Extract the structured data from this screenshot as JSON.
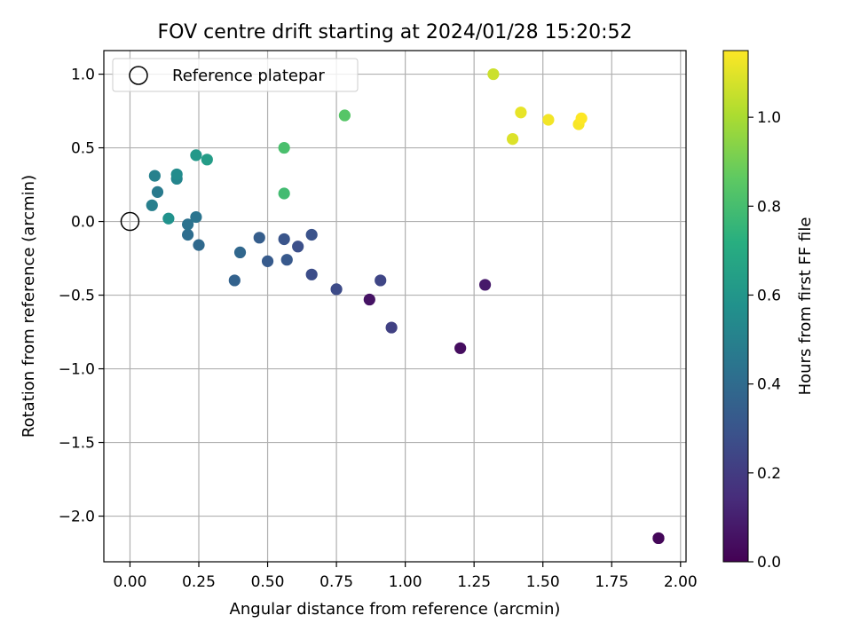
{
  "chart_data": {
    "type": "scatter",
    "title": "FOV centre drift starting at 2024/01/28 15:20:52",
    "xlabel": "Angular distance from reference (arcmin)",
    "ylabel": "Rotation from reference (arcmin)",
    "xlim": [
      -0.095,
      2.02
    ],
    "ylim": [
      -2.31,
      1.16
    ],
    "xticks": [
      0.0,
      0.25,
      0.5,
      0.75,
      1.0,
      1.25,
      1.5,
      1.75,
      2.0
    ],
    "xtick_labels": [
      "0.00",
      "0.25",
      "0.50",
      "0.75",
      "1.00",
      "1.25",
      "1.50",
      "1.75",
      "2.00"
    ],
    "yticks": [
      1.0,
      0.5,
      0.0,
      -0.5,
      -1.0,
      -1.5,
      -2.0
    ],
    "ytick_labels": [
      "1.0",
      "0.5",
      "0.0",
      "−0.5",
      "−1.0",
      "−1.5",
      "−2.0"
    ],
    "grid": true,
    "legend": {
      "placement": "top-left",
      "label": "Reference platepar"
    },
    "reference_point": {
      "x": 0.0,
      "y": 0.0
    },
    "colorbar": {
      "label": "Hours from first FF file",
      "range": [
        0.0,
        1.15
      ],
      "ticks": [
        0.0,
        0.2,
        0.4,
        0.6,
        0.8,
        1.0
      ],
      "tick_labels": [
        "0.0",
        "0.2",
        "0.4",
        "0.6",
        "0.8",
        "1.0"
      ],
      "colormap": "viridis"
    },
    "points": [
      {
        "x": 1.92,
        "y": -2.15,
        "c": 0.0
      },
      {
        "x": 1.92,
        "y": -2.15,
        "c": 0.02
      },
      {
        "x": 1.2,
        "y": -0.86,
        "c": 0.04
      },
      {
        "x": 0.87,
        "y": -0.53,
        "c": 0.06
      },
      {
        "x": 1.29,
        "y": -0.43,
        "c": 0.08
      },
      {
        "x": 0.95,
        "y": -0.72,
        "c": 0.22
      },
      {
        "x": 0.91,
        "y": -0.4,
        "c": 0.24
      },
      {
        "x": 0.75,
        "y": -0.46,
        "c": 0.26
      },
      {
        "x": 0.66,
        "y": -0.36,
        "c": 0.27
      },
      {
        "x": 0.61,
        "y": -0.17,
        "c": 0.28
      },
      {
        "x": 0.66,
        "y": -0.09,
        "c": 0.29
      },
      {
        "x": 0.56,
        "y": -0.12,
        "c": 0.3
      },
      {
        "x": 0.57,
        "y": -0.26,
        "c": 0.32
      },
      {
        "x": 0.5,
        "y": -0.27,
        "c": 0.33
      },
      {
        "x": 0.47,
        "y": -0.11,
        "c": 0.34
      },
      {
        "x": 0.38,
        "y": -0.4,
        "c": 0.36
      },
      {
        "x": 0.4,
        "y": -0.21,
        "c": 0.38
      },
      {
        "x": 0.25,
        "y": -0.16,
        "c": 0.39
      },
      {
        "x": 0.21,
        "y": -0.09,
        "c": 0.41
      },
      {
        "x": 0.21,
        "y": -0.02,
        "c": 0.43
      },
      {
        "x": 0.24,
        "y": 0.03,
        "c": 0.44
      },
      {
        "x": 0.1,
        "y": 0.2,
        "c": 0.47
      },
      {
        "x": 0.08,
        "y": 0.11,
        "c": 0.49
      },
      {
        "x": 0.09,
        "y": 0.31,
        "c": 0.5
      },
      {
        "x": 0.17,
        "y": 0.29,
        "c": 0.52
      },
      {
        "x": 0.17,
        "y": 0.32,
        "c": 0.55
      },
      {
        "x": 0.14,
        "y": 0.02,
        "c": 0.58
      },
      {
        "x": 0.24,
        "y": 0.45,
        "c": 0.61
      },
      {
        "x": 0.28,
        "y": 0.42,
        "c": 0.63
      },
      {
        "x": 0.56,
        "y": 0.19,
        "c": 0.79
      },
      {
        "x": 0.56,
        "y": 0.5,
        "c": 0.81
      },
      {
        "x": 0.78,
        "y": 0.72,
        "c": 0.84
      },
      {
        "x": 1.32,
        "y": 1.0,
        "c": 1.06
      },
      {
        "x": 1.39,
        "y": 0.56,
        "c": 1.09
      },
      {
        "x": 1.42,
        "y": 0.74,
        "c": 1.11
      },
      {
        "x": 1.52,
        "y": 0.69,
        "c": 1.13
      },
      {
        "x": 1.63,
        "y": 0.66,
        "c": 1.14
      },
      {
        "x": 1.64,
        "y": 0.7,
        "c": 1.15
      }
    ]
  }
}
